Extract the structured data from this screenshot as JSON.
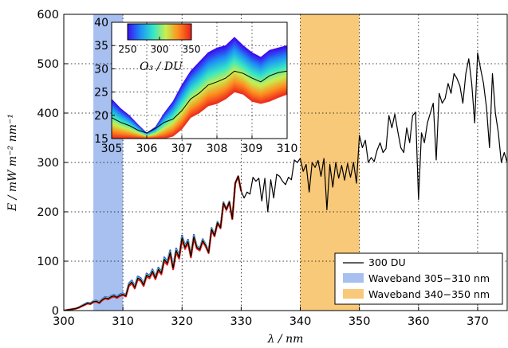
{
  "chart_data": {
    "type": "line",
    "xlabel": "λ / nm",
    "ylabel": "E / mW m⁻² nm⁻¹",
    "xlim": [
      300,
      375
    ],
    "ylim": [
      0,
      600
    ],
    "xticks": [
      "300",
      "310",
      "320",
      "330",
      "340",
      "350",
      "360",
      "370"
    ],
    "yticks": [
      "0",
      "100",
      "200",
      "300",
      "400",
      "500",
      "600"
    ],
    "grid": "dotted",
    "wavebands": [
      {
        "label": "Waveband 305−310 nm",
        "range": [
          305,
          310
        ],
        "color": "#a8c0f0"
      },
      {
        "label": "Waveband 340−350 nm",
        "range": [
          340,
          350
        ],
        "color": "#f9c97a"
      }
    ],
    "series": [
      {
        "name": "300 DU",
        "color": "#000000",
        "x": [
          300,
          300.5,
          301,
          301.5,
          302,
          302.5,
          303,
          303.5,
          304,
          304.5,
          305,
          305.5,
          306,
          306.5,
          307,
          307.5,
          308,
          308.5,
          309,
          309.5,
          310,
          310.5,
          311,
          311.5,
          312,
          312.5,
          313,
          313.5,
          314,
          314.5,
          315,
          315.5,
          316,
          316.5,
          317,
          317.5,
          318,
          318.5,
          319,
          319.5,
          320,
          320.5,
          321,
          321.5,
          322,
          322.5,
          323,
          323.5,
          324,
          324.5,
          325,
          325.5,
          326,
          326.5,
          327,
          327.5,
          328,
          328.5,
          329,
          329.5,
          330,
          330.5,
          331,
          331.5,
          332,
          332.5,
          333,
          333.5,
          334,
          334.5,
          335,
          335.5,
          336,
          336.5,
          337,
          337.5,
          338,
          338.5,
          339,
          339.5,
          340,
          340.5,
          341,
          341.5,
          342,
          342.5,
          343,
          343.5,
          344,
          344.5,
          345,
          345.5,
          346,
          346.5,
          347,
          347.5,
          348,
          348.5,
          349,
          349.5,
          350,
          350.5,
          351,
          351.5,
          352,
          352.5,
          353,
          353.5,
          354,
          354.5,
          355,
          355.5,
          356,
          356.5,
          357,
          357.5,
          358,
          358.5,
          359,
          359.5,
          360,
          360.5,
          361,
          361.5,
          362,
          362.5,
          363,
          363.5,
          364,
          364.5,
          365,
          365.5,
          366,
          366.5,
          367,
          367.5,
          368,
          368.5,
          369,
          369.5,
          370,
          370.5,
          371,
          371.5,
          372,
          372.5,
          373,
          373.5,
          374,
          374.5,
          375
        ],
        "y": [
          0,
          1,
          2,
          3,
          4,
          6,
          9,
          12,
          15,
          14,
          18,
          19,
          16,
          22,
          26,
          24,
          28,
          30,
          27,
          31,
          33,
          30,
          52,
          58,
          47,
          66,
          63,
          52,
          72,
          68,
          80,
          66,
          84,
          76,
          104,
          96,
          118,
          86,
          122,
          108,
          148,
          128,
          140,
          110,
          150,
          128,
          124,
          142,
          132,
          118,
          165,
          152,
          178,
          168,
          218,
          205,
          220,
          186,
          258,
          272,
          242,
          228,
          240,
          236,
          270,
          262,
          268,
          222,
          268,
          200,
          265,
          228,
          276,
          272,
          262,
          255,
          270,
          265,
          305,
          300,
          308,
          282,
          296,
          240,
          300,
          290,
          304,
          272,
          308,
          204,
          296,
          250,
          300,
          268,
          294,
          264,
          298,
          270,
          300,
          258,
          355,
          330,
          345,
          300,
          310,
          302,
          325,
          340,
          320,
          328,
          395,
          370,
          398,
          362,
          330,
          320,
          370,
          340,
          395,
          402,
          225,
          360,
          340,
          380,
          400,
          420,
          305,
          440,
          420,
          430,
          460,
          440,
          480,
          470,
          455,
          420,
          480,
          510,
          460,
          380,
          522,
          490,
          460,
          410,
          330,
          480,
          400,
          360,
          300,
          320,
          300
        ]
      }
    ],
    "shading": {
      "band_min_du": 250,
      "band_max_du": 350
    },
    "inset": {
      "xlim": [
        305,
        310
      ],
      "ylim": [
        15,
        40
      ],
      "xticks": [
        "305",
        "306",
        "307",
        "308",
        "309",
        "310"
      ],
      "yticks": [
        "15",
        "20",
        "25",
        "30",
        "35",
        "40"
      ],
      "x": [
        305.0,
        305.25,
        305.5,
        305.75,
        306.0,
        306.25,
        306.5,
        306.75,
        307.0,
        307.25,
        307.5,
        307.75,
        308.0,
        308.25,
        308.5,
        308.75,
        309.0,
        309.25,
        309.5,
        309.75,
        310.0
      ],
      "y": [
        19.5,
        18.5,
        17.8,
        16.8,
        16.2,
        17.2,
        18.5,
        19.2,
        21.0,
        23.5,
        24.8,
        26.5,
        27.2,
        28.0,
        29.5,
        29.0,
        28.0,
        27.2,
        28.5,
        29.2,
        29.5
      ],
      "upper": [
        23.5,
        21.5,
        20.0,
        18.0,
        16.2,
        17.5,
        20.5,
        23.0,
        26.5,
        29.5,
        31.5,
        33.5,
        34.5,
        35.0,
        36.8,
        35.0,
        33.5,
        32.5,
        34.0,
        34.5,
        35.0
      ],
      "lower": [
        15.0,
        15.0,
        15.0,
        15.0,
        15.0,
        15.0,
        15.0,
        15.5,
        17.0,
        19.5,
        20.5,
        22.0,
        22.5,
        23.5,
        25.0,
        24.5,
        23.0,
        22.5,
        23.0,
        23.8,
        24.5
      ]
    },
    "colorbar": {
      "label": "O₃ / DU",
      "min": 250,
      "max": 350,
      "ticks": [
        "250",
        "300",
        "350"
      ],
      "colors": [
        "#3b0ff0",
        "#1e8ff5",
        "#33e6c8",
        "#c8f050",
        "#ff8a1e",
        "#e81e1e"
      ]
    },
    "legend": {
      "position": "bottom-right",
      "entries": [
        "300 DU",
        "Waveband 305−310 nm",
        "Waveband 340−350 nm"
      ]
    }
  }
}
